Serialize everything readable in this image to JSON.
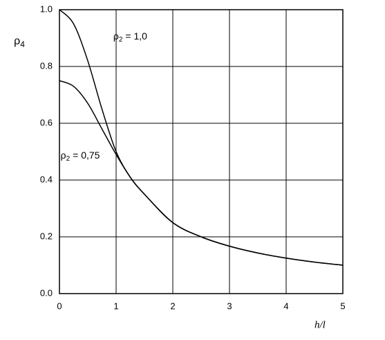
{
  "chart_data": {
    "type": "line",
    "ylabel": {
      "base": "ρ",
      "sub": "4"
    },
    "xlabel": "h/l",
    "x": [
      0,
      0.25,
      0.5,
      0.75,
      1,
      1.25,
      1.5,
      2,
      2.5,
      3,
      3.5,
      4,
      4.5,
      5
    ],
    "series": [
      {
        "color": "#000000",
        "values": [
          1.0,
          0.95,
          0.82,
          0.65,
          0.5,
          0.41,
          0.35,
          0.25,
          0.2,
          0.167,
          0.143,
          0.125,
          0.111,
          0.1
        ]
      },
      {
        "color": "#000000",
        "values": [
          0.75,
          0.73,
          0.67,
          0.58,
          0.49,
          0.41,
          0.35,
          0.25,
          0.2,
          0.167,
          0.143,
          0.125,
          0.111,
          0.1
        ]
      }
    ],
    "annotations": [
      {
        "base": "ρ",
        "sub": "2",
        "rest": "= 1,0",
        "x": 0.95,
        "y": 0.905
      },
      {
        "base": "ρ",
        "sub": "2",
        "rest": "= 0,75",
        "x": 0.02,
        "y": 0.485
      }
    ],
    "xlim": [
      0,
      5
    ],
    "ylim": [
      0,
      1.0
    ],
    "xticks": [
      0,
      1,
      2,
      3,
      4,
      5
    ],
    "yticks": [
      {
        "value": 0,
        "label": "0.0"
      },
      0.2,
      0.4,
      0.6,
      0.8,
      {
        "value": 1.0,
        "label": "1.0"
      }
    ],
    "grid": true
  }
}
